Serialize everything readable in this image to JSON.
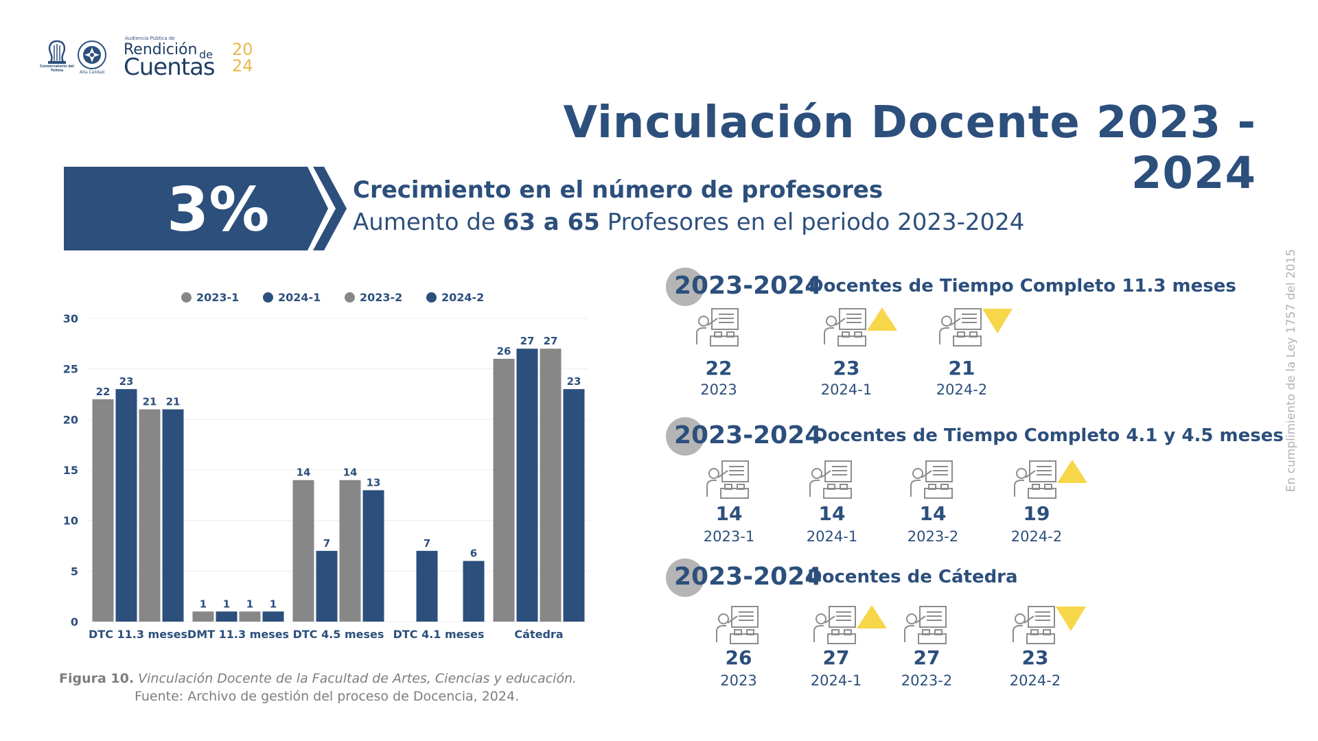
{
  "header": {
    "logo1_caption": "Conservatorio del Tolima",
    "logo2_caption": "Alta Calidad",
    "brand_small": "Audiencia Pública de",
    "brand_line1": "Rendición",
    "brand_de": "de",
    "brand_line2": "Cuentas",
    "brand_year_top": "20",
    "brand_year_bottom": "24"
  },
  "title": "Vinculación Docente 2023 - 2024",
  "highlight": {
    "percent": "3%",
    "headline": "Crecimiento en el número de profesores",
    "sub_prefix": "Aumento de ",
    "sub_bold": "63 a 65",
    "sub_suffix": " Profesores en el periodo 2023-2024"
  },
  "side_note": "En cumplimiento de la Ley 1757 del 2015",
  "chart_data": {
    "type": "bar",
    "categories": [
      "DTC 11.3 meses",
      "DMT 11.3 meses",
      "DTC 4.5 meses",
      "DTC 4.1 meses",
      "Cátedra"
    ],
    "series": [
      {
        "name": "2023-1",
        "color": "#878787",
        "values": [
          22,
          1,
          14,
          null,
          26
        ]
      },
      {
        "name": "2024-1",
        "color": "#2c4f7c",
        "values": [
          23,
          1,
          7,
          7,
          27
        ]
      },
      {
        "name": "2023-2",
        "color": "#878787",
        "values": [
          21,
          1,
          14,
          null,
          27
        ]
      },
      {
        "name": "2024-2",
        "color": "#2c4f7c",
        "values": [
          21,
          1,
          13,
          6,
          23
        ]
      }
    ],
    "ylim": [
      0,
      30
    ],
    "yticks": [
      0,
      5,
      10,
      15,
      20,
      25,
      30
    ],
    "grid": true,
    "legend": "top"
  },
  "caption": {
    "fig_label": "Figura 10.",
    "fig_text": " Vinculación Docente de la Facultad de Artes, Ciencias y educación.",
    "source": "Fuente: Archivo de gestión del proceso de Docencia, 2024."
  },
  "sections": [
    {
      "year": "2023-2024",
      "label": "Docentes de Tiempo Completo 11.3 meses",
      "items": [
        {
          "value": "22",
          "label": "2023",
          "trend": ""
        },
        {
          "value": "23",
          "label": "2024-1",
          "trend": "up"
        },
        {
          "value": "21",
          "label": "2024-2",
          "trend": "down"
        }
      ]
    },
    {
      "year": "2023-2024",
      "label": "Docentes de Tiempo Completo 4.1 y 4.5 meses",
      "items": [
        {
          "value": "14",
          "label": "2023-1",
          "trend": ""
        },
        {
          "value": "14",
          "label": "2024-1",
          "trend": ""
        },
        {
          "value": "14",
          "label": "2023-2",
          "trend": ""
        },
        {
          "value": "19",
          "label": "2024-2",
          "trend": "up"
        }
      ]
    },
    {
      "year": "2023-2024",
      "label": "Docentes de Cátedra",
      "items": [
        {
          "value": "26",
          "label": "2023",
          "trend": ""
        },
        {
          "value": "27",
          "label": "2024-1",
          "trend": "up"
        },
        {
          "value": "27",
          "label": "2023-2",
          "trend": ""
        },
        {
          "value": "23",
          "label": "2024-2",
          "trend": "down"
        }
      ]
    }
  ],
  "icons": {
    "logo1": "lyre-logo-icon",
    "logo2": "seal-logo-icon",
    "stat": "teacher-board-icon",
    "trend_up": "triangle-up-icon",
    "trend_down": "triangle-down-icon"
  }
}
